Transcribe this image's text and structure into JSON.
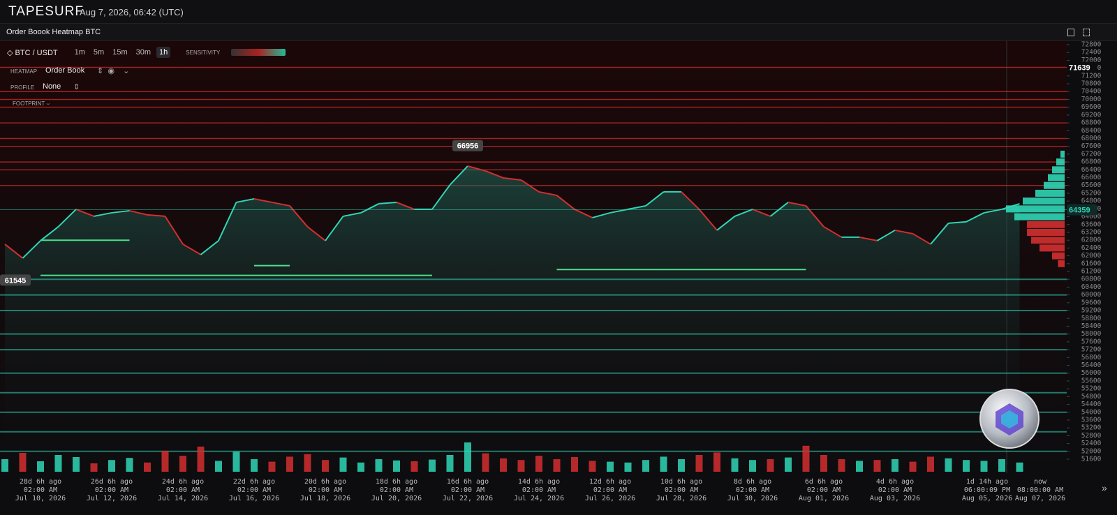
{
  "header": {
    "logo": "TAPESURF",
    "datetime": "Aug 7, 2026, 06:42 (UTC)"
  },
  "panel": {
    "title": "Order Boook Heatmap BTC"
  },
  "toolbar": {
    "symbol": "BTC / USDT",
    "timeframes": [
      "1m",
      "5m",
      "15m",
      "30m",
      "1h"
    ],
    "active_timeframe": "1h",
    "sensitivity_label": "SENSITIVITY"
  },
  "settings": {
    "rows": [
      {
        "label": "HEATMAP",
        "value": "Order Book"
      },
      {
        "label": "PROFILE",
        "value": "None"
      },
      {
        "label": "FOOTPRINT"
      }
    ]
  },
  "chart_data": {
    "type": "line",
    "color": "#2fd6b6",
    "down_color": "#d32f2f",
    "values": [
      62595,
      61882,
      62774,
      63487,
      64380,
      64023,
      64201,
      64308,
      64094,
      64023,
      62595,
      62060,
      62774,
      64736,
      64915,
      64736,
      64558,
      63487,
      62774,
      64023,
      64201,
      64665,
      64736,
      64380,
      64380,
      65629,
      66592,
      66342,
      65985,
      65878,
      65272,
      65093,
      64380,
      63952,
      64201,
      64380,
      64558,
      65272,
      65272,
      64380,
      63309,
      64023,
      64380,
      64023,
      64736,
      64558,
      63487,
      62952,
      62952,
      62774,
      63309,
      63130,
      62595,
      63666,
      63738,
      64201,
      64380,
      64665
    ],
    "volumes": [
      30,
      45,
      25,
      40,
      35,
      20,
      28,
      33,
      22,
      50,
      38,
      60,
      26,
      48,
      30,
      24,
      36,
      42,
      28,
      34,
      22,
      30,
      27,
      25,
      29,
      40,
      70,
      44,
      32,
      28,
      38,
      30,
      35,
      26,
      24,
      22,
      28,
      36,
      30,
      40,
      46,
      32,
      28,
      30,
      34,
      62,
      40,
      30,
      26,
      28,
      30,
      24,
      36,
      32,
      28,
      26,
      30,
      22
    ],
    "ylim": [
      51600,
      72800
    ],
    "yticks": [
      72800,
      72400,
      72000,
      71600,
      71200,
      70800,
      70400,
      70000,
      69600,
      69200,
      68800,
      68400,
      68000,
      67600,
      67200,
      66800,
      66400,
      66000,
      65600,
      65200,
      64800,
      64400,
      64000,
      63600,
      63200,
      62800,
      62400,
      62000,
      61600,
      61200,
      60800,
      60400,
      60000,
      59600,
      59200,
      58800,
      58400,
      58000,
      57600,
      57200,
      56800,
      56400,
      56000,
      55600,
      55200,
      54800,
      54400,
      54000,
      53600,
      53200,
      52800,
      52400,
      52000,
      51600
    ],
    "price_labels": {
      "top": 71639,
      "last": 64359,
      "high": 66956,
      "low": 61545
    },
    "ask_levels": [
      71639,
      70400,
      70000,
      69600,
      68800,
      68000,
      67600,
      66800,
      66400,
      65600
    ],
    "bid_levels": [
      60800,
      60000,
      59200,
      58000,
      57200,
      56000,
      55000,
      54000,
      53000,
      52000
    ],
    "bid_walls": [
      {
        "price": 62800,
        "start": 2,
        "end": 7
      },
      {
        "price": 61000,
        "start": 2,
        "end": 24
      },
      {
        "price": 61500,
        "start": 14,
        "end": 16
      },
      {
        "price": 61300,
        "start": 31,
        "end": 45
      }
    ],
    "profile_prices": [
      67200,
      66800,
      66400,
      66000,
      65600,
      65200,
      64800,
      64400,
      64000,
      63600,
      63200,
      62800,
      62400,
      62000,
      61600
    ],
    "profile_bids": [
      5,
      10,
      15,
      20,
      25,
      35,
      50,
      70,
      60,
      null,
      null,
      null,
      null,
      null,
      null
    ],
    "profile_asks": [
      null,
      null,
      null,
      null,
      null,
      null,
      null,
      null,
      null,
      45,
      45,
      40,
      30,
      15,
      8
    ],
    "time_labels": [
      [
        "28d 6h ago",
        "02:00 AM",
        "Jul 10, 2026"
      ],
      [
        "26d 6h ago",
        "02:00 AM",
        "Jul 12, 2026"
      ],
      [
        "24d 6h ago",
        "02:00 AM",
        "Jul 14, 2026"
      ],
      [
        "22d 6h ago",
        "02:00 AM",
        "Jul 16, 2026"
      ],
      [
        "20d 6h ago",
        "02:00 AM",
        "Jul 18, 2026"
      ],
      [
        "18d 6h ago",
        "02:00 AM",
        "Jul 20, 2026"
      ],
      [
        "16d 6h ago",
        "02:00 AM",
        "Jul 22, 2026"
      ],
      [
        "14d 6h ago",
        "02:00 AM",
        "Jul 24, 2026"
      ],
      [
        "12d 6h ago",
        "02:00 AM",
        "Jul 26, 2026"
      ],
      [
        "10d 6h ago",
        "02:00 AM",
        "Jul 28, 2026"
      ],
      [
        "8d 6h ago",
        "02:00 AM",
        "Jul 30, 2026"
      ],
      [
        "6d 6h ago",
        "02:00 AM",
        "Aug 01, 2026"
      ],
      [
        "4d 6h ago",
        "02:00 AM",
        "Aug 03, 2026"
      ],
      [
        "1d 14h ago",
        "06:00:09 PM",
        "Aug 05, 2026"
      ],
      [
        "now",
        "08:00:00 AM",
        "Aug 07, 2026"
      ]
    ]
  }
}
